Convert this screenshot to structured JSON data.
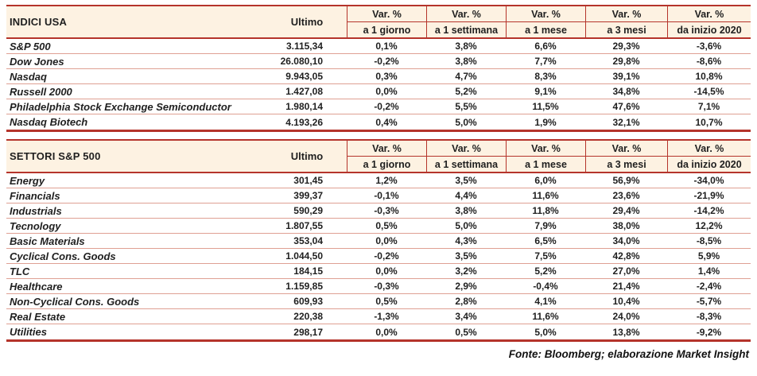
{
  "colors": {
    "border_red": "#b5342b",
    "header_bg": "#fdf2e2",
    "row_line": "#dfa093",
    "text": "#1f1f1f"
  },
  "chart_data": [
    {
      "type": "table",
      "title": "INDICI USA",
      "header": {
        "ultimo": "Ultimo",
        "var_label": "Var. %",
        "periods": [
          "a 1 giorno",
          "a 1 settimana",
          "a 1 mese",
          "a 3 mesi",
          "da inizio 2020"
        ]
      },
      "rows": [
        {
          "name": "S&P 500",
          "ultimo": "3.115,34",
          "values": [
            "0,1%",
            "3,8%",
            "6,6%",
            "29,3%",
            "-3,6%"
          ]
        },
        {
          "name": "Dow Jones",
          "ultimo": "26.080,10",
          "values": [
            "-0,2%",
            "3,8%",
            "7,7%",
            "29,8%",
            "-8,6%"
          ]
        },
        {
          "name": "Nasdaq",
          "ultimo": "9.943,05",
          "values": [
            "0,3%",
            "4,7%",
            "8,3%",
            "39,1%",
            "10,8%"
          ]
        },
        {
          "name": "Russell 2000",
          "ultimo": "1.427,08",
          "values": [
            "0,0%",
            "5,2%",
            "9,1%",
            "34,8%",
            "-14,5%"
          ]
        },
        {
          "name": "Philadelphia Stock Exchange Semiconductor",
          "ultimo": "1.980,14",
          "values": [
            "-0,2%",
            "5,5%",
            "11,5%",
            "47,6%",
            "7,1%"
          ]
        },
        {
          "name": "Nasdaq Biotech",
          "ultimo": "4.193,26",
          "values": [
            "0,4%",
            "5,0%",
            "1,9%",
            "32,1%",
            "10,7%"
          ]
        }
      ]
    },
    {
      "type": "table",
      "title": "SETTORI S&P 500",
      "header": {
        "ultimo": "Ultimo",
        "var_label": "Var. %",
        "periods": [
          "a 1 giorno",
          "a 1 settimana",
          "a 1 mese",
          "a 3 mesi",
          "da inizio 2020"
        ]
      },
      "rows": [
        {
          "name": "Energy",
          "ultimo": "301,45",
          "values": [
            "1,2%",
            "3,5%",
            "6,0%",
            "56,9%",
            "-34,0%"
          ]
        },
        {
          "name": "Financials",
          "ultimo": "399,37",
          "values": [
            "-0,1%",
            "4,4%",
            "11,6%",
            "23,6%",
            "-21,9%"
          ]
        },
        {
          "name": "Industrials",
          "ultimo": "590,29",
          "values": [
            "-0,3%",
            "3,8%",
            "11,8%",
            "29,4%",
            "-14,2%"
          ]
        },
        {
          "name": "Tecnology",
          "ultimo": "1.807,55",
          "values": [
            "0,5%",
            "5,0%",
            "7,9%",
            "38,0%",
            "12,2%"
          ]
        },
        {
          "name": "Basic Materials",
          "ultimo": "353,04",
          "values": [
            "0,0%",
            "4,3%",
            "6,5%",
            "34,0%",
            "-8,5%"
          ]
        },
        {
          "name": "Cyclical Cons. Goods",
          "ultimo": "1.044,50",
          "values": [
            "-0,2%",
            "3,5%",
            "7,5%",
            "42,8%",
            "5,9%"
          ]
        },
        {
          "name": "TLC",
          "ultimo": "184,15",
          "values": [
            "0,0%",
            "3,2%",
            "5,2%",
            "27,0%",
            "1,4%"
          ]
        },
        {
          "name": "Healthcare",
          "ultimo": "1.159,85",
          "values": [
            "-0,3%",
            "2,9%",
            "-0,4%",
            "21,4%",
            "-2,4%"
          ]
        },
        {
          "name": "Non-Cyclical Cons. Goods",
          "ultimo": "609,93",
          "values": [
            "0,5%",
            "2,8%",
            "4,1%",
            "10,4%",
            "-5,7%"
          ]
        },
        {
          "name": "Real Estate",
          "ultimo": "220,38",
          "values": [
            "-1,3%",
            "3,4%",
            "11,6%",
            "24,0%",
            "-8,3%"
          ]
        },
        {
          "name": "Utilities",
          "ultimo": "298,17",
          "values": [
            "0,0%",
            "0,5%",
            "5,0%",
            "13,8%",
            "-9,2%"
          ]
        }
      ]
    }
  ],
  "footer": {
    "source": "Fonte: Bloomberg; elaborazione Market Insight"
  }
}
